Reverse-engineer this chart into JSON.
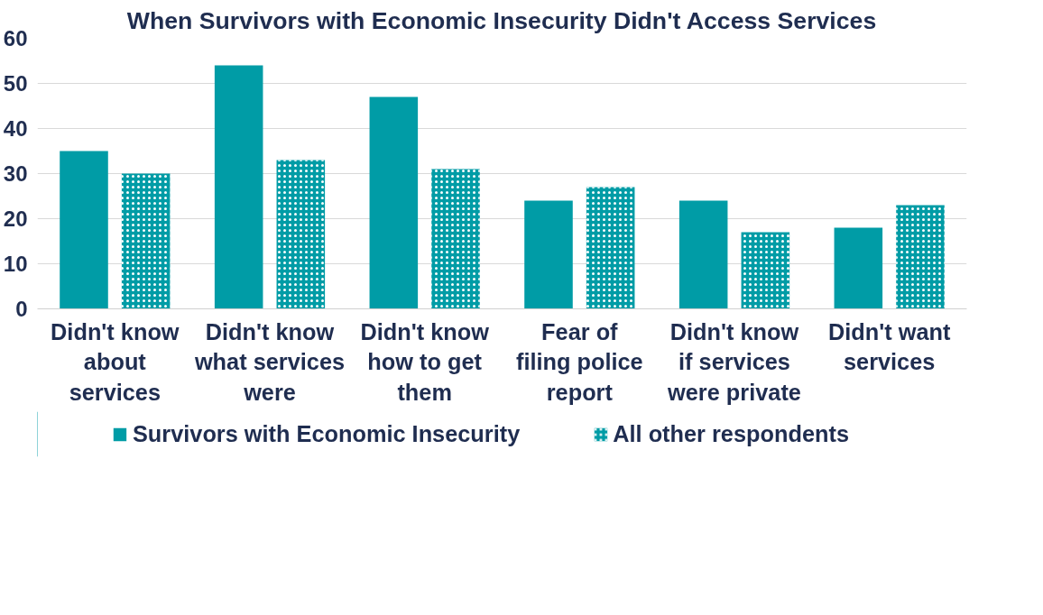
{
  "chart_data": {
    "type": "bar",
    "title": "When Survivors with Economic Insecurity Didn't Access Services",
    "categories": [
      "Didn't know about services",
      "Didn't know what services were",
      "Didn't know how to get them",
      "Fear of filing police report",
      "Didn't know if services were private",
      "Didn't want services"
    ],
    "series": [
      {
        "name": "Survivors with Economic Insecurity",
        "color": "#009ca6",
        "values": [
          35,
          54,
          47,
          24,
          24,
          18
        ]
      },
      {
        "name": "All other respondents",
        "color": "#009ca6",
        "values": [
          30,
          33,
          31,
          27,
          17,
          23
        ]
      }
    ],
    "ylim": [
      0,
      60
    ],
    "yticks": [
      0,
      10,
      20,
      30,
      40,
      50,
      60
    ],
    "grid": "y",
    "legend": "bottom"
  }
}
